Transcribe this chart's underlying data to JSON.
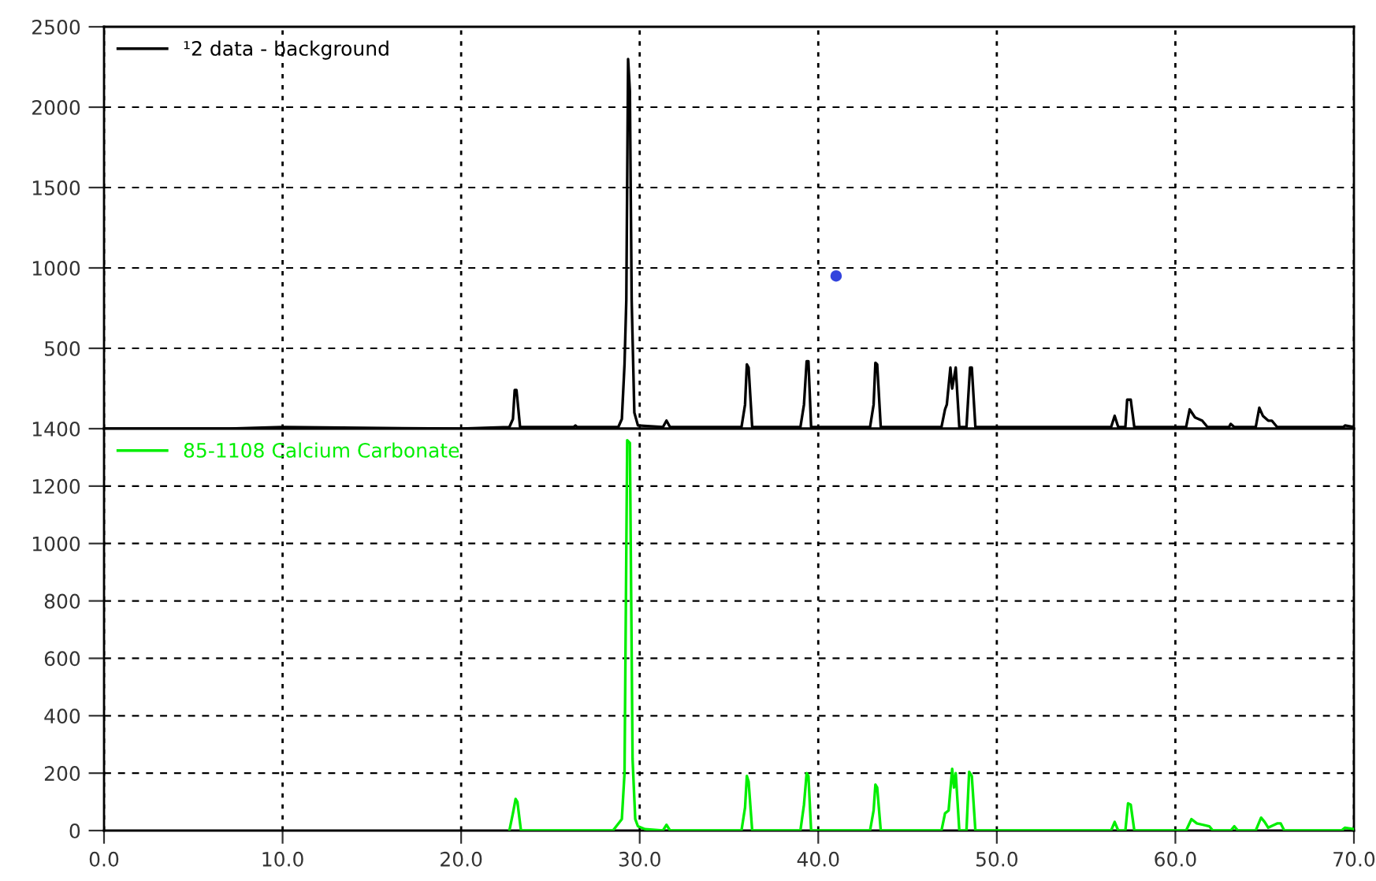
{
  "chart_data": [
    {
      "type": "line",
      "xlim": [
        0,
        70
      ],
      "ylim": [
        0,
        2500
      ],
      "yticks": [
        500,
        1000,
        1500,
        2000,
        2500
      ],
      "tick_labels": "y",
      "grid": true,
      "legend": "top left",
      "series": [
        {
          "name": "¹2 data - background",
          "color": "#000000",
          "x": [
            0,
            7,
            10,
            20,
            22.7,
            22.9,
            23.0,
            23.1,
            23.3,
            26.3,
            26.4,
            26.5,
            28.8,
            29.0,
            29.15,
            29.25,
            29.35,
            29.45,
            29.55,
            29.7,
            29.9,
            31.3,
            31.5,
            31.7,
            35.7,
            35.9,
            36.0,
            36.1,
            36.3,
            39.0,
            39.2,
            39.35,
            39.45,
            39.6,
            42.9,
            43.1,
            43.2,
            43.3,
            43.5,
            46.9,
            47.1,
            47.2,
            47.4,
            47.5,
            47.7,
            47.9,
            48.3,
            48.5,
            48.6,
            48.8,
            56.4,
            56.6,
            56.8,
            57.2,
            57.3,
            57.5,
            57.7,
            60.6,
            60.8,
            61.1,
            61.5,
            61.8,
            63.0,
            63.1,
            63.3,
            64.5,
            64.7,
            64.9,
            65.2,
            65.4,
            65.7,
            69.4,
            69.5,
            70
          ],
          "values": [
            0,
            0,
            10,
            0,
            10,
            60,
            240,
            240,
            10,
            10,
            20,
            10,
            10,
            60,
            400,
            800,
            2300,
            2100,
            800,
            100,
            20,
            10,
            50,
            10,
            10,
            150,
            400,
            380,
            10,
            10,
            150,
            420,
            420,
            10,
            10,
            150,
            410,
            400,
            10,
            10,
            120,
            150,
            380,
            250,
            380,
            10,
            10,
            380,
            380,
            10,
            10,
            80,
            10,
            10,
            180,
            180,
            10,
            10,
            120,
            70,
            50,
            10,
            10,
            30,
            10,
            10,
            130,
            80,
            50,
            50,
            10,
            10,
            20,
            10
          ]
        },
        {
          "type": "scatter",
          "color": "#3344dd",
          "x": [
            41.0
          ],
          "values": [
            950
          ],
          "marker": "circle"
        }
      ]
    },
    {
      "type": "line",
      "xlim": [
        0,
        70
      ],
      "xticks": [
        {
          "value": 0,
          "label": "0.0"
        },
        {
          "value": 10,
          "label": "10.0"
        },
        {
          "value": 20,
          "label": "20.0"
        },
        {
          "value": 30,
          "label": "30.0"
        },
        {
          "value": 40,
          "label": "40.0"
        },
        {
          "value": 50,
          "label": "50.0"
        },
        {
          "value": 60,
          "label": "60.0"
        },
        {
          "value": 70,
          "label": "70.0"
        }
      ],
      "ylim": [
        0,
        1400
      ],
      "yticks": [
        0,
        200,
        400,
        600,
        800,
        1000,
        1200,
        1400
      ],
      "grid": true,
      "legend": "top left",
      "series": [
        {
          "name": "85-1108 Calcium Carbonate",
          "color": "#00ee00",
          "x": [
            22.7,
            22.9,
            23.05,
            23.15,
            23.35,
            28.5,
            29.0,
            29.15,
            29.3,
            29.45,
            29.6,
            29.75,
            29.9,
            30.3,
            31.3,
            31.5,
            31.7,
            35.7,
            35.9,
            36.0,
            36.1,
            36.3,
            39.0,
            39.2,
            39.35,
            39.45,
            39.6,
            42.9,
            43.1,
            43.2,
            43.3,
            43.5,
            46.9,
            47.1,
            47.3,
            47.5,
            47.6,
            47.7,
            47.9,
            48.3,
            48.45,
            48.6,
            48.8,
            56.4,
            56.6,
            56.8,
            57.2,
            57.35,
            57.5,
            57.7,
            60.6,
            60.9,
            61.2,
            61.9,
            62.1,
            63.1,
            63.3,
            63.5,
            64.5,
            64.8,
            65.0,
            65.2,
            65.7,
            65.9,
            66.1,
            69.3,
            69.5,
            70
          ],
          "values": [
            0,
            60,
            110,
            100,
            0,
            0,
            40,
            200,
            1360,
            1350,
            250,
            40,
            15,
            5,
            0,
            20,
            0,
            0,
            80,
            190,
            170,
            0,
            0,
            90,
            200,
            190,
            0,
            0,
            70,
            160,
            150,
            0,
            0,
            60,
            70,
            215,
            150,
            200,
            0,
            0,
            205,
            190,
            0,
            0,
            30,
            0,
            0,
            95,
            90,
            0,
            0,
            40,
            25,
            15,
            0,
            0,
            15,
            0,
            0,
            45,
            30,
            10,
            25,
            25,
            0,
            0,
            10,
            5
          ]
        }
      ]
    }
  ]
}
